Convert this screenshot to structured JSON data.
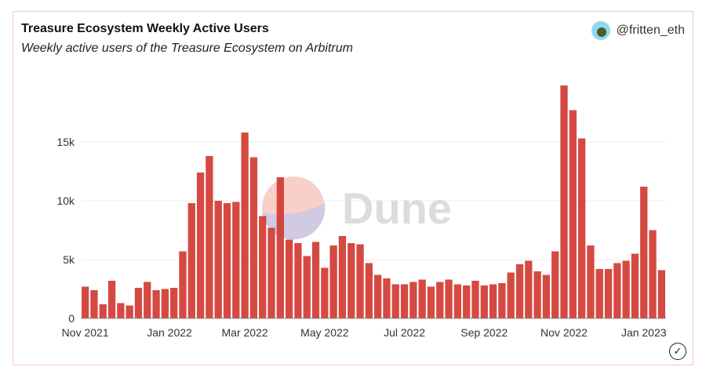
{
  "header": {
    "title": "Treasure Ecosystem Weekly Active Users",
    "subtitle": "Weekly active users of the Treasure Ecosystem on Arbitrum",
    "author": "@fritten_eth",
    "avatar_icon": "user-avatar-icon"
  },
  "watermark": {
    "text": "Dune"
  },
  "colors": {
    "bar": "#d13a33",
    "grid": "#eeeeee",
    "border": "#f3c9bf",
    "wm_top": "#f6c9bd",
    "wm_bottom": "#c9c9e6"
  },
  "footer": {
    "icon": "checkmark-circle-icon"
  },
  "chart_data": {
    "type": "bar",
    "title": "Treasure Ecosystem Weekly Active Users",
    "subtitle": "Weekly active users of the Treasure Ecosystem on Arbitrum",
    "xlabel": "",
    "ylabel": "",
    "ylim": [
      0,
      20000
    ],
    "yticks": [
      0,
      5000,
      10000,
      15000
    ],
    "ytick_labels": [
      "0",
      "5k",
      "10k",
      "15k"
    ],
    "xtick_labels": [
      {
        "label": "Nov 2021",
        "index": 0
      },
      {
        "label": "Jan 2022",
        "index": 9.5
      },
      {
        "label": "Mar 2022",
        "index": 18
      },
      {
        "label": "May 2022",
        "index": 27
      },
      {
        "label": "Jul 2022",
        "index": 36
      },
      {
        "label": "Sep 2022",
        "index": 45
      },
      {
        "label": "Nov 2022",
        "index": 54
      },
      {
        "label": "Jan 2023",
        "index": 63
      }
    ],
    "series": [
      {
        "name": "Weekly Active Users",
        "values": [
          2700,
          2400,
          1200,
          3200,
          1300,
          1100,
          2600,
          3100,
          2400,
          2500,
          2600,
          5700,
          9800,
          12400,
          13800,
          10000,
          9800,
          9900,
          15800,
          13700,
          8700,
          7700,
          12000,
          6700,
          6400,
          5300,
          6500,
          4300,
          6200,
          7000,
          6400,
          6300,
          4700,
          3700,
          3400,
          2900,
          2900,
          3100,
          3300,
          2700,
          3100,
          3300,
          2900,
          2800,
          3200,
          2800,
          2900,
          3000,
          3900,
          4600,
          4900,
          4000,
          3700,
          5700,
          19800,
          17700,
          15300,
          6200,
          4200,
          4200,
          4700,
          4900,
          5500,
          11200,
          7500,
          4100
        ]
      }
    ]
  }
}
